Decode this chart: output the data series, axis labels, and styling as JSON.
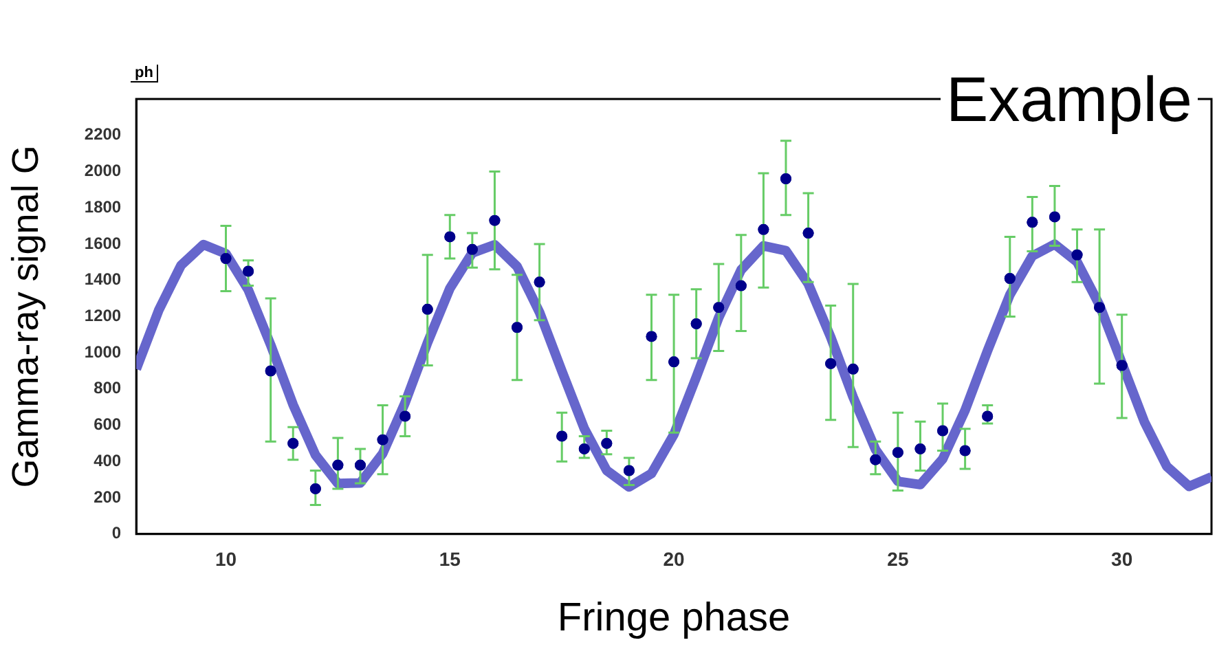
{
  "chart_data": {
    "type": "scatter",
    "xlabel": "Fringe phase",
    "ylabel": "Gamma-ray signal G",
    "annotations": [
      "ph",
      "Example"
    ],
    "xlim": [
      8,
      32
    ],
    "xticks": [
      10,
      15,
      20,
      25,
      30
    ],
    "ylim": [
      0,
      2400
    ],
    "yticks": [
      0,
      200,
      400,
      600,
      800,
      1000,
      1200,
      1400,
      1600,
      1800,
      2000,
      2200
    ],
    "grid": false,
    "legend": false,
    "marker": "circle",
    "series": [
      {
        "color": "#00008b",
        "x": [
          10,
          10.5,
          11,
          11.5,
          12,
          12.5,
          13,
          13.5,
          14,
          14.5,
          15,
          15.5,
          16,
          16.5,
          17,
          17.5,
          18,
          18.5,
          19,
          19.5,
          20,
          20.5,
          21,
          21.5,
          22,
          22.5,
          23,
          23.5,
          24,
          24.5,
          25,
          25.5,
          26,
          26.5,
          27,
          27.5,
          28,
          28.5,
          29,
          29.5,
          30
        ],
        "values": [
          1520,
          1450,
          900,
          500,
          250,
          380,
          380,
          520,
          650,
          1240,
          1640,
          1570,
          1730,
          1140,
          1390,
          540,
          470,
          500,
          350,
          1090,
          950,
          1160,
          1250,
          1370,
          1680,
          1960,
          1660,
          940,
          910,
          410,
          450,
          470,
          570,
          460,
          650,
          1410,
          1720,
          1750,
          1540,
          1250,
          930
        ],
        "errors": [
          [
            1340,
            1700
          ],
          [
            1370,
            1510
          ],
          [
            510,
            1300
          ],
          [
            410,
            590
          ],
          [
            160,
            350
          ],
          [
            250,
            530
          ],
          [
            280,
            470
          ],
          [
            330,
            710
          ],
          [
            540,
            760
          ],
          [
            930,
            1540
          ],
          [
            1520,
            1760
          ],
          [
            1470,
            1660
          ],
          [
            1460,
            2000
          ],
          [
            850,
            1430
          ],
          [
            1180,
            1600
          ],
          [
            400,
            670
          ],
          [
            420,
            540
          ],
          [
            440,
            570
          ],
          [
            270,
            420
          ],
          [
            850,
            1320
          ],
          [
            560,
            1320
          ],
          [
            970,
            1350
          ],
          [
            1010,
            1490
          ],
          [
            1120,
            1650
          ],
          [
            1360,
            1990
          ],
          [
            1760,
            2170
          ],
          [
            1390,
            1880
          ],
          [
            630,
            1260
          ],
          [
            480,
            1380
          ],
          [
            330,
            510
          ],
          [
            240,
            670
          ],
          [
            350,
            620
          ],
          [
            460,
            720
          ],
          [
            360,
            580
          ],
          [
            610,
            710
          ],
          [
            1200,
            1640
          ],
          [
            1560,
            1860
          ],
          [
            1590,
            1920
          ],
          [
            1390,
            1680
          ],
          [
            830,
            1680
          ],
          [
            640,
            1210
          ]
        ]
      },
      {
        "type": "line",
        "color": "#6666cc",
        "marker": "none",
        "line_style": "solid",
        "x": [
          8,
          8.5,
          9,
          9.5,
          10,
          10.5,
          11,
          11.5,
          12,
          12.5,
          13,
          13.5,
          14,
          14.5,
          15,
          15.5,
          16,
          16.5,
          17,
          17.5,
          18,
          18.5,
          19,
          19.5,
          20,
          20.5,
          21,
          21.5,
          22,
          22.5,
          23,
          23.5,
          24,
          24.5,
          25,
          25.5,
          26,
          26.5,
          27,
          27.5,
          28,
          28.5,
          29,
          29.5,
          30,
          30.5,
          31,
          31.5,
          32
        ],
        "values": [
          910,
          1234,
          1483,
          1597,
          1547,
          1347,
          1044,
          714,
          436,
          279,
          282,
          444,
          724,
          1055,
          1355,
          1551,
          1596,
          1476,
          1224,
          899,
          582,
          351,
          260,
          334,
          549,
          866,
          1194,
          1457,
          1590,
          1563,
          1380,
          1087,
          756,
          467,
          291,
          273,
          414,
          683,
          1011,
          1320,
          1534,
          1599,
          1501,
          1263,
          943,
          620,
          374,
          263,
          315
        ]
      }
    ]
  }
}
